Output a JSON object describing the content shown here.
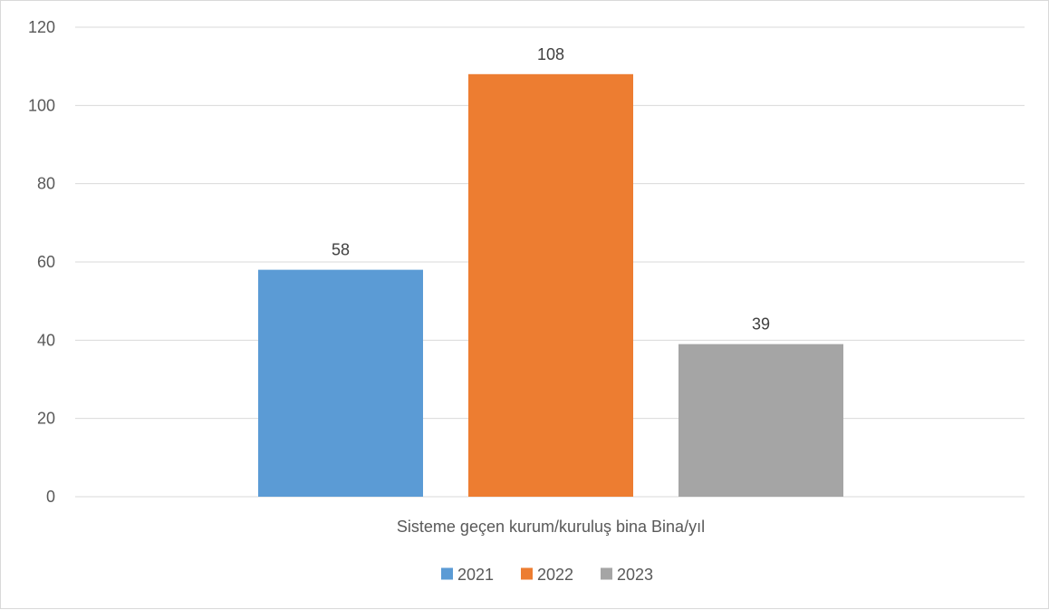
{
  "chart_data": {
    "type": "bar",
    "categories": [
      "Sisteme geçen kurum/kuruluş bina Bina/yıl"
    ],
    "series": [
      {
        "name": "2021",
        "values": [
          58
        ],
        "color": "#5b9bd5"
      },
      {
        "name": "2022",
        "values": [
          108
        ],
        "color": "#ed7d31"
      },
      {
        "name": "2023",
        "values": [
          39
        ],
        "color": "#a5a5a5"
      }
    ],
    "y_ticks": [
      "0",
      "20",
      "40",
      "60",
      "80",
      "100",
      "120"
    ],
    "ylim": [
      0,
      120
    ],
    "grid": true,
    "gridline_color": "#d9d9d9",
    "legend_placement": "bottom",
    "data_labels": [
      "58",
      "108",
      "39"
    ]
  }
}
